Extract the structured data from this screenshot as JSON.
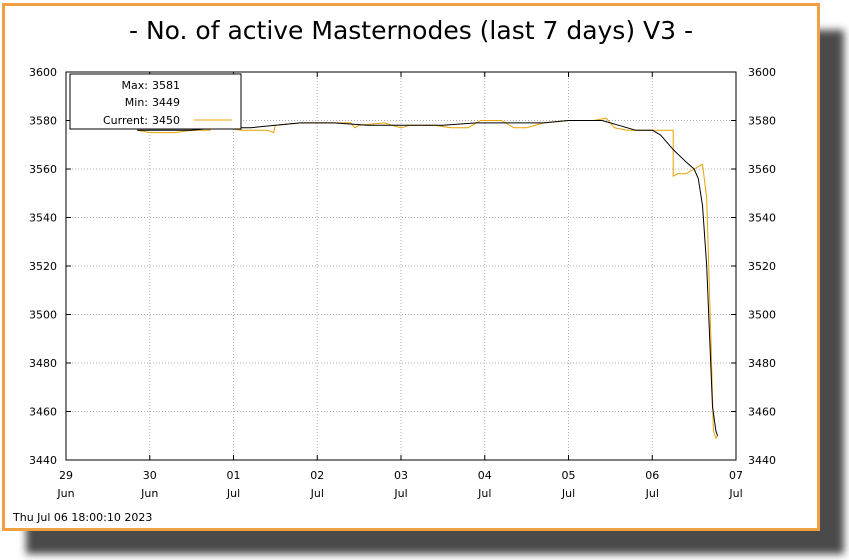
{
  "title": "- No. of active Masternodes (last 7 days) V3 -",
  "timestamp": "Thu Jul 06 18:00:10 2023",
  "legend": {
    "max_label": "Max:",
    "max_value": "3581",
    "min_label": "Min:",
    "min_value": "3449",
    "current_label": "Current:",
    "current_value": "3450"
  },
  "colors": {
    "frame": "#f0a040",
    "raw_series": "#e8a000",
    "smooth_series": "#000000",
    "grid": "#b0b0b0"
  },
  "chart_data": {
    "type": "line",
    "title": "- No. of active Masternodes (last 7 days) V3 -",
    "xlabel": "",
    "ylabel": "",
    "ylim": [
      3440,
      3600
    ],
    "xlim": [
      0,
      8
    ],
    "grid": true,
    "legend_placement": "top-left",
    "y_ticks": [
      3440,
      3460,
      3480,
      3500,
      3520,
      3540,
      3560,
      3580,
      3600
    ],
    "x_ticks": [
      {
        "v": 0,
        "day": "29",
        "month": "Jun"
      },
      {
        "v": 1,
        "day": "30",
        "month": "Jun"
      },
      {
        "v": 2,
        "day": "01",
        "month": "Jul"
      },
      {
        "v": 3,
        "day": "02",
        "month": "Jul"
      },
      {
        "v": 4,
        "day": "03",
        "month": "Jul"
      },
      {
        "v": 5,
        "day": "04",
        "month": "Jul"
      },
      {
        "v": 6,
        "day": "05",
        "month": "Jul"
      },
      {
        "v": 7,
        "day": "06",
        "month": "Jul"
      },
      {
        "v": 8,
        "day": "07",
        "month": "Jul"
      }
    ],
    "series": [
      {
        "name": "Current: 3450",
        "style": "raw",
        "points": [
          [
            0.85,
            3576
          ],
          [
            1.0,
            3575
          ],
          [
            1.3,
            3575
          ],
          [
            1.5,
            3576
          ],
          [
            1.72,
            3576
          ],
          [
            1.72,
            3578
          ],
          [
            1.88,
            3578
          ],
          [
            1.88,
            3577
          ],
          [
            2.1,
            3576
          ],
          [
            2.4,
            3576
          ],
          [
            2.48,
            3575
          ],
          [
            2.5,
            3578
          ],
          [
            2.8,
            3579
          ],
          [
            3.0,
            3579
          ],
          [
            3.2,
            3579
          ],
          [
            3.4,
            3579
          ],
          [
            3.45,
            3577
          ],
          [
            3.5,
            3578
          ],
          [
            3.8,
            3579
          ],
          [
            4.0,
            3577
          ],
          [
            4.1,
            3578
          ],
          [
            4.4,
            3578
          ],
          [
            4.6,
            3577
          ],
          [
            4.8,
            3577
          ],
          [
            4.95,
            3580
          ],
          [
            5.2,
            3580
          ],
          [
            5.35,
            3577
          ],
          [
            5.5,
            3577
          ],
          [
            5.7,
            3579
          ],
          [
            6.0,
            3580
          ],
          [
            6.3,
            3580
          ],
          [
            6.45,
            3581
          ],
          [
            6.55,
            3577
          ],
          [
            6.7,
            3576
          ],
          [
            6.85,
            3576
          ],
          [
            7.2,
            3576
          ],
          [
            7.25,
            3576
          ],
          [
            7.25,
            3557
          ],
          [
            7.3,
            3558
          ],
          [
            7.4,
            3558
          ],
          [
            7.5,
            3560
          ],
          [
            7.6,
            3562
          ],
          [
            7.65,
            3548
          ],
          [
            7.7,
            3490
          ],
          [
            7.73,
            3452
          ],
          [
            7.76,
            3449
          ],
          [
            7.78,
            3450
          ]
        ]
      },
      {
        "name": "",
        "style": "smooth",
        "points": [
          [
            0.85,
            3576
          ],
          [
            1.2,
            3576
          ],
          [
            1.5,
            3576
          ],
          [
            1.8,
            3577
          ],
          [
            2.2,
            3577
          ],
          [
            2.5,
            3578
          ],
          [
            2.8,
            3579
          ],
          [
            3.2,
            3579
          ],
          [
            3.6,
            3578
          ],
          [
            4.0,
            3578
          ],
          [
            4.5,
            3578
          ],
          [
            4.9,
            3579
          ],
          [
            5.3,
            3579
          ],
          [
            5.7,
            3579
          ],
          [
            6.0,
            3580
          ],
          [
            6.4,
            3580
          ],
          [
            6.6,
            3578
          ],
          [
            6.8,
            3576
          ],
          [
            7.0,
            3576
          ],
          [
            7.1,
            3574
          ],
          [
            7.25,
            3568
          ],
          [
            7.4,
            3563
          ],
          [
            7.5,
            3560
          ],
          [
            7.55,
            3556
          ],
          [
            7.6,
            3545
          ],
          [
            7.65,
            3520
          ],
          [
            7.68,
            3495
          ],
          [
            7.72,
            3462
          ],
          [
            7.76,
            3452
          ],
          [
            7.78,
            3450
          ]
        ]
      }
    ]
  }
}
